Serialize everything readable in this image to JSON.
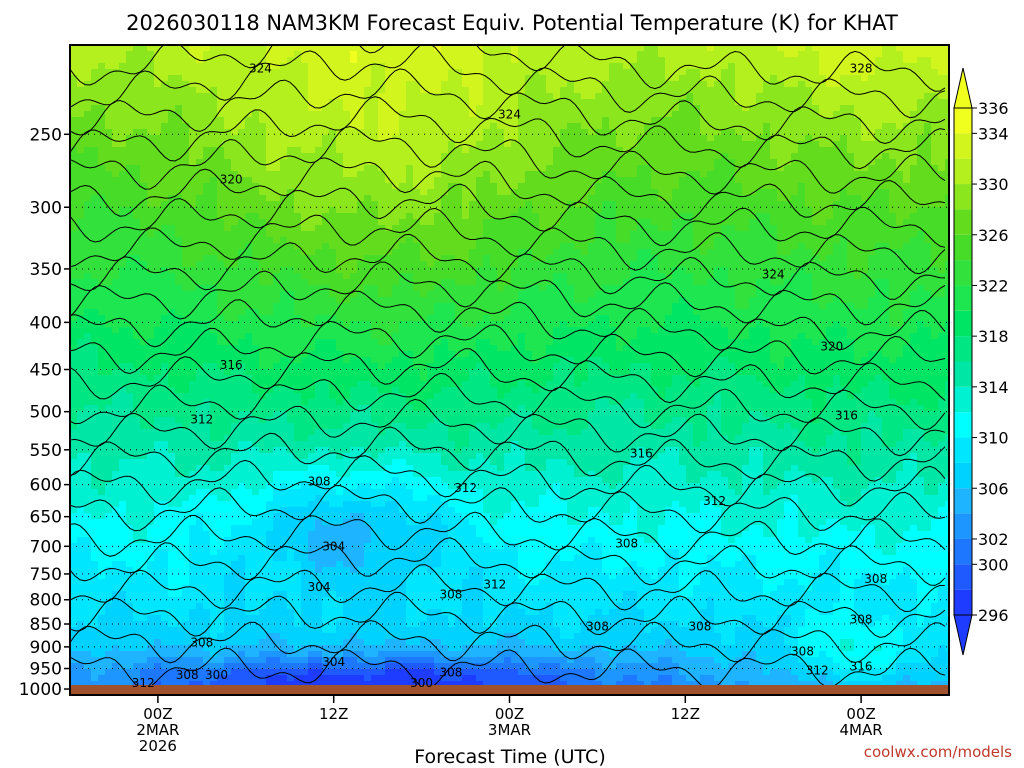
{
  "chart_data": {
    "type": "heatmap",
    "title": "2026030118 NAM3KM Forecast Equiv. Potential Temperature (K) for KHAT",
    "xlabel": "Forecast Time (UTC)",
    "ylabel": "",
    "y_axis": {
      "scale": "log",
      "unit": "hPa",
      "range": [
        1015,
        200
      ],
      "ticks": [
        {
          "value": 250,
          "label": "250"
        },
        {
          "value": 300,
          "label": "300"
        },
        {
          "value": 350,
          "label": "350"
        },
        {
          "value": 400,
          "label": "400"
        },
        {
          "value": 450,
          "label": "450"
        },
        {
          "value": 500,
          "label": "500"
        },
        {
          "value": 550,
          "label": "550"
        },
        {
          "value": 600,
          "label": "600"
        },
        {
          "value": 650,
          "label": "650"
        },
        {
          "value": 700,
          "label": "700"
        },
        {
          "value": 750,
          "label": "750"
        },
        {
          "value": 800,
          "label": "800"
        },
        {
          "value": 850,
          "label": "850"
        },
        {
          "value": 900,
          "label": "900"
        },
        {
          "value": 950,
          "label": "950"
        },
        {
          "value": 1000,
          "label": "1000"
        }
      ],
      "grid": "dotted"
    },
    "x_axis": {
      "range": [
        "2026-03-01 18Z",
        "2026-03-04 06Z"
      ],
      "ticks": [
        {
          "time": "2026-03-02 00Z",
          "lines": [
            "00Z",
            "2MAR",
            "2026"
          ]
        },
        {
          "time": "2026-03-02 12Z",
          "lines": [
            "12Z"
          ]
        },
        {
          "time": "2026-03-03 00Z",
          "lines": [
            "00Z",
            "3MAR"
          ]
        },
        {
          "time": "2026-03-03 12Z",
          "lines": [
            "12Z"
          ]
        },
        {
          "time": "2026-03-04 00Z",
          "lines": [
            "00Z",
            "4MAR"
          ]
        }
      ]
    },
    "colorbar": {
      "levels": [
        296,
        298,
        300,
        302,
        304,
        306,
        308,
        310,
        312,
        314,
        316,
        318,
        320,
        322,
        324,
        326,
        328,
        330,
        332,
        334,
        336
      ],
      "labels": [
        "296",
        "300",
        "302",
        "306",
        "310",
        "314",
        "318",
        "322",
        "326",
        "330",
        "334",
        "336"
      ],
      "label_levels": [
        296,
        300,
        302,
        306,
        310,
        314,
        318,
        322,
        326,
        330,
        334,
        336
      ],
      "colors": [
        "#1e3cff",
        "#1e5aff",
        "#1e78ff",
        "#1e96ff",
        "#1eb4ff",
        "#00d2ff",
        "#00e6ff",
        "#00ffff",
        "#00f0d2",
        "#00e6a5",
        "#00e682",
        "#00e664",
        "#1ee650",
        "#32e13c",
        "#46dc28",
        "#64dc1e",
        "#8ce61e",
        "#b4f01e",
        "#d2f51e",
        "#f0ff1e"
      ]
    },
    "contour_labels": [
      {
        "time": "2026-03-02 07Z",
        "p": 212,
        "label": "324"
      },
      {
        "time": "2026-03-04 00Z",
        "p": 212,
        "label": "328"
      },
      {
        "time": "2026-03-03 00Z",
        "p": 238,
        "label": "324"
      },
      {
        "time": "2026-03-02 05Z",
        "p": 280,
        "label": "320"
      },
      {
        "time": "2026-03-03 18Z",
        "p": 355,
        "label": "324"
      },
      {
        "time": "2026-03-02 05Z",
        "p": 445,
        "label": "316"
      },
      {
        "time": "2026-03-03 22Z",
        "p": 425,
        "label": "320"
      },
      {
        "time": "2026-03-02 03Z",
        "p": 510,
        "label": "312"
      },
      {
        "time": "2026-03-03 09Z",
        "p": 555,
        "label": "316"
      },
      {
        "time": "2026-03-03 23Z",
        "p": 505,
        "label": "316"
      },
      {
        "time": "2026-03-02 11Z",
        "p": 595,
        "label": "308"
      },
      {
        "time": "2026-03-02 21Z",
        "p": 605,
        "label": "312"
      },
      {
        "time": "2026-03-03 14Z",
        "p": 625,
        "label": "312"
      },
      {
        "time": "2026-03-02 12Z",
        "p": 700,
        "label": "304"
      },
      {
        "time": "2026-03-03 08Z",
        "p": 695,
        "label": "308"
      },
      {
        "time": "2026-03-02 11Z",
        "p": 775,
        "label": "304"
      },
      {
        "time": "2026-03-02 20Z",
        "p": 790,
        "label": "308"
      },
      {
        "time": "2026-03-02 23Z",
        "p": 770,
        "label": "312"
      },
      {
        "time": "2026-03-04 01Z",
        "p": 760,
        "label": "308"
      },
      {
        "time": "2026-03-03 06Z",
        "p": 855,
        "label": "308"
      },
      {
        "time": "2026-03-03 13Z",
        "p": 855,
        "label": "308"
      },
      {
        "time": "2026-03-04 00Z",
        "p": 840,
        "label": "308"
      },
      {
        "time": "2026-03-02 03Z",
        "p": 890,
        "label": "308"
      },
      {
        "time": "2026-03-02 12Z",
        "p": 935,
        "label": "304"
      },
      {
        "time": "2026-03-03 20Z",
        "p": 910,
        "label": "308"
      },
      {
        "time": "2026-03-02 20Z",
        "p": 960,
        "label": "308"
      },
      {
        "time": "2026-03-01 23Z",
        "p": 985,
        "label": "312"
      },
      {
        "time": "2026-03-02 02Z",
        "p": 965,
        "label": "308"
      },
      {
        "time": "2026-03-02 04Z",
        "p": 965,
        "label": "300"
      },
      {
        "time": "2026-03-02 18Z",
        "p": 985,
        "label": "300"
      },
      {
        "time": "2026-03-03 21Z",
        "p": 955,
        "label": "312"
      },
      {
        "time": "2026-03-04 00Z",
        "p": 945,
        "label": "316"
      }
    ],
    "surface": {
      "p": 1015,
      "color": "#a0522d"
    }
  },
  "credit": "coolwx.com/models"
}
